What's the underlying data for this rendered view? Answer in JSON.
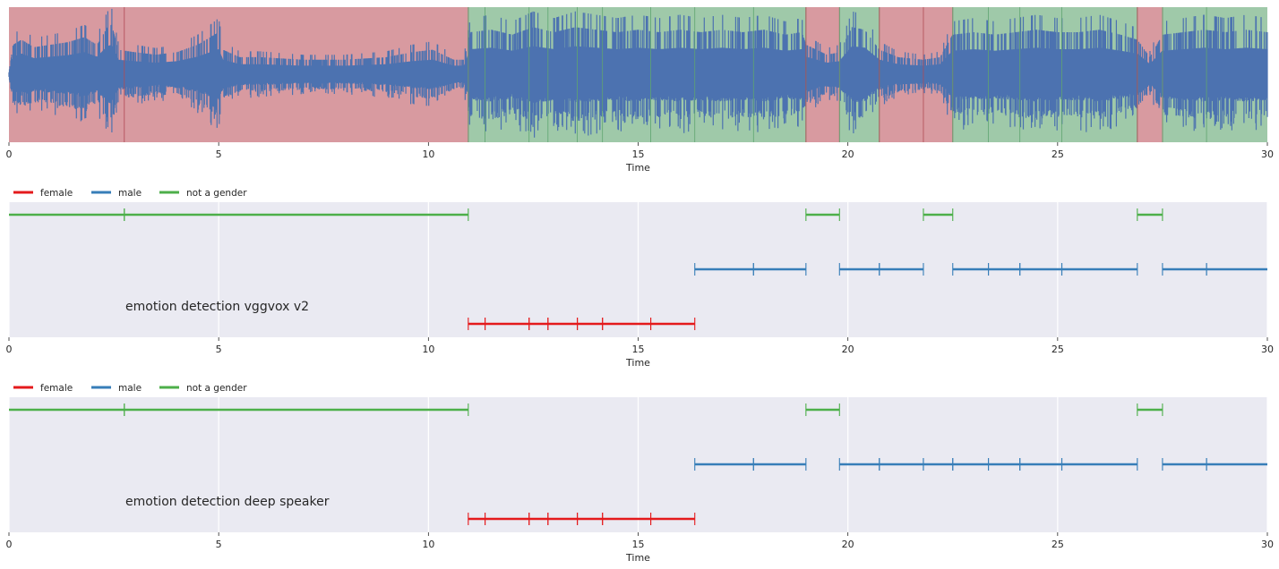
{
  "chart_data": [
    {
      "type": "area",
      "subtype": "waveform-with-segments",
      "xlabel": "Time",
      "xlim": [
        0,
        30
      ],
      "xticks": [
        0,
        5,
        10,
        15,
        20,
        25,
        30
      ],
      "waveform_color": "#4c72b0",
      "segment_colors": {
        "red": "#d89aa0",
        "green": "#9fc9a9"
      },
      "segments": [
        {
          "start": 0,
          "end": 10.95,
          "color": "red",
          "boundaries": [
            2.75
          ]
        },
        {
          "start": 10.95,
          "end": 19.0,
          "color": "green",
          "boundaries": [
            11.35,
            12.4,
            12.85,
            13.55,
            14.15,
            15.3,
            16.35,
            17.75
          ]
        },
        {
          "start": 19.0,
          "end": 19.8,
          "color": "red",
          "boundaries": []
        },
        {
          "start": 19.8,
          "end": 20.75,
          "color": "green",
          "boundaries": []
        },
        {
          "start": 20.75,
          "end": 22.5,
          "color": "red",
          "boundaries": [
            21.8
          ]
        },
        {
          "start": 22.5,
          "end": 26.9,
          "color": "green",
          "boundaries": [
            23.35,
            24.1,
            25.1
          ]
        },
        {
          "start": 26.9,
          "end": 27.5,
          "color": "red",
          "boundaries": []
        },
        {
          "start": 27.5,
          "end": 30,
          "color": "green",
          "boundaries": [
            28.55
          ]
        }
      ],
      "amplitude_envelope": [
        [
          0,
          0.05
        ],
        [
          0.1,
          0.6
        ],
        [
          0.3,
          0.7
        ],
        [
          0.6,
          0.55
        ],
        [
          1.0,
          0.6
        ],
        [
          1.4,
          0.65
        ],
        [
          1.8,
          0.75
        ],
        [
          2.1,
          0.6
        ],
        [
          2.35,
          0.95
        ],
        [
          2.45,
          1.0
        ],
        [
          2.6,
          0.5
        ],
        [
          3.0,
          0.45
        ],
        [
          3.5,
          0.4
        ],
        [
          4.0,
          0.45
        ],
        [
          4.5,
          0.6
        ],
        [
          4.9,
          0.8
        ],
        [
          5.0,
          0.85
        ],
        [
          5.1,
          0.5
        ],
        [
          5.5,
          0.35
        ],
        [
          6.0,
          0.35
        ],
        [
          7.0,
          0.3
        ],
        [
          8.0,
          0.3
        ],
        [
          9.0,
          0.35
        ],
        [
          9.6,
          0.45
        ],
        [
          10.1,
          0.5
        ],
        [
          10.6,
          0.3
        ],
        [
          10.85,
          0.3
        ],
        [
          11.0,
          0.85
        ],
        [
          11.5,
          0.9
        ],
        [
          12.0,
          0.8
        ],
        [
          12.5,
          0.95
        ],
        [
          13.0,
          0.85
        ],
        [
          13.5,
          0.95
        ],
        [
          14.0,
          0.9
        ],
        [
          14.5,
          0.85
        ],
        [
          15.0,
          0.9
        ],
        [
          15.5,
          0.85
        ],
        [
          16.0,
          0.9
        ],
        [
          16.5,
          0.85
        ],
        [
          17.0,
          0.9
        ],
        [
          17.5,
          0.85
        ],
        [
          18.0,
          0.9
        ],
        [
          18.5,
          0.8
        ],
        [
          18.9,
          0.85
        ],
        [
          19.0,
          0.6
        ],
        [
          19.5,
          0.4
        ],
        [
          19.8,
          0.45
        ],
        [
          20.1,
          0.95
        ],
        [
          20.4,
          0.9
        ],
        [
          20.75,
          0.5
        ],
        [
          21.2,
          0.35
        ],
        [
          21.8,
          0.3
        ],
        [
          22.2,
          0.35
        ],
        [
          22.5,
          0.8
        ],
        [
          23.0,
          0.85
        ],
        [
          23.5,
          0.8
        ],
        [
          24.0,
          0.85
        ],
        [
          24.5,
          0.9
        ],
        [
          25.0,
          0.85
        ],
        [
          25.5,
          0.85
        ],
        [
          26.0,
          0.9
        ],
        [
          26.5,
          0.8
        ],
        [
          26.9,
          0.7
        ],
        [
          27.2,
          0.35
        ],
        [
          27.5,
          0.8
        ],
        [
          28.0,
          0.85
        ],
        [
          28.5,
          0.9
        ],
        [
          29.0,
          0.85
        ],
        [
          29.5,
          0.9
        ],
        [
          30.0,
          0.85
        ]
      ]
    },
    {
      "type": "line",
      "subtype": "segment-timeline",
      "annotation": "emotion detection vggvox v2",
      "xlabel": "Time",
      "xlim": [
        0,
        30
      ],
      "xticks": [
        0,
        5,
        10,
        15,
        20,
        25,
        30
      ],
      "legend": {
        "placement": "top-left",
        "entries": [
          {
            "label": "female",
            "color": "#e41a1c"
          },
          {
            "label": "male",
            "color": "#377eb8"
          },
          {
            "label": "not a gender",
            "color": "#4daf4a"
          }
        ]
      },
      "rows": [
        {
          "label": "not a gender",
          "level": 3,
          "segments": [
            [
              0,
              2.75
            ],
            [
              2.75,
              10.95
            ],
            [
              19.0,
              19.8
            ],
            [
              21.8,
              22.5
            ],
            [
              26.9,
              27.5
            ]
          ]
        },
        {
          "label": "male",
          "level": 2,
          "segments": [
            [
              16.35,
              17.75
            ],
            [
              17.75,
              19.0
            ],
            [
              19.8,
              20.75
            ],
            [
              20.75,
              21.8
            ],
            [
              22.5,
              23.35
            ],
            [
              23.35,
              24.1
            ],
            [
              24.1,
              25.1
            ],
            [
              25.1,
              26.9
            ],
            [
              27.5,
              28.55
            ],
            [
              28.55,
              30
            ]
          ]
        },
        {
          "label": "female",
          "level": 1,
          "segments": [
            [
              10.95,
              11.35
            ],
            [
              11.35,
              12.4
            ],
            [
              12.4,
              12.85
            ],
            [
              12.85,
              13.55
            ],
            [
              13.55,
              14.15
            ],
            [
              14.15,
              15.3
            ],
            [
              15.3,
              16.35
            ]
          ]
        }
      ]
    },
    {
      "type": "line",
      "subtype": "segment-timeline",
      "annotation": "emotion detection deep speaker",
      "xlabel": "Time",
      "xlim": [
        0,
        30
      ],
      "xticks": [
        0,
        5,
        10,
        15,
        20,
        25,
        30
      ],
      "legend": {
        "placement": "top-left",
        "entries": [
          {
            "label": "female",
            "color": "#e41a1c"
          },
          {
            "label": "male",
            "color": "#377eb8"
          },
          {
            "label": "not a gender",
            "color": "#4daf4a"
          }
        ]
      },
      "rows": [
        {
          "label": "not a gender",
          "level": 3,
          "segments": [
            [
              0,
              2.75
            ],
            [
              2.75,
              10.95
            ],
            [
              19.0,
              19.8
            ],
            [
              26.9,
              27.5
            ]
          ]
        },
        {
          "label": "male",
          "level": 2,
          "segments": [
            [
              16.35,
              17.75
            ],
            [
              17.75,
              19.0
            ],
            [
              19.8,
              20.75
            ],
            [
              20.75,
              21.8
            ],
            [
              21.8,
              22.5
            ],
            [
              22.5,
              23.35
            ],
            [
              23.35,
              24.1
            ],
            [
              24.1,
              25.1
            ],
            [
              25.1,
              26.9
            ],
            [
              27.5,
              28.55
            ],
            [
              28.55,
              30
            ]
          ]
        },
        {
          "label": "female",
          "level": 1,
          "segments": [
            [
              10.95,
              11.35
            ],
            [
              11.35,
              12.4
            ],
            [
              12.4,
              12.85
            ],
            [
              12.85,
              13.55
            ],
            [
              13.55,
              14.15
            ],
            [
              14.15,
              15.3
            ],
            [
              15.3,
              16.35
            ]
          ]
        }
      ]
    }
  ]
}
